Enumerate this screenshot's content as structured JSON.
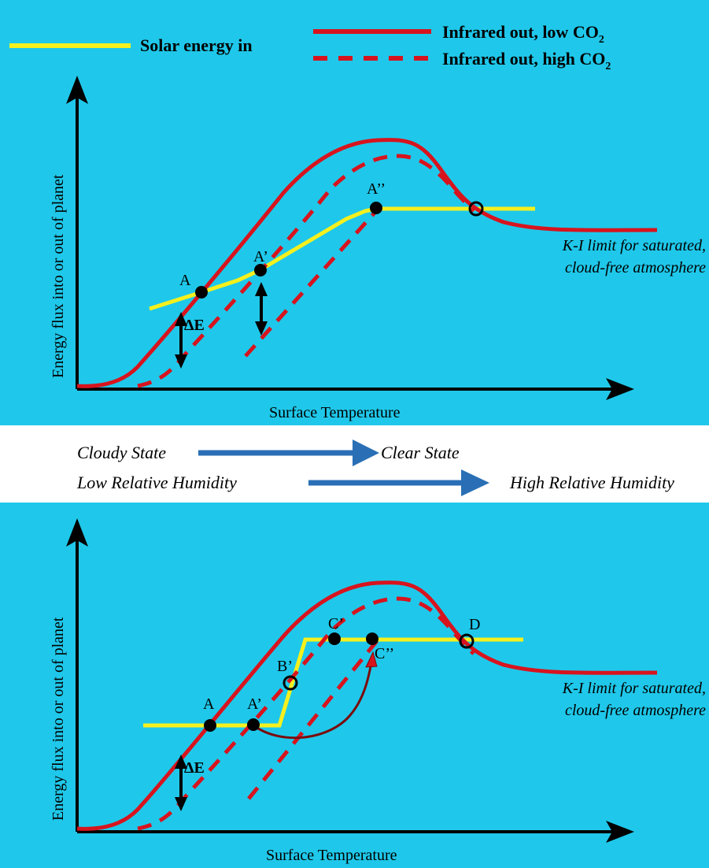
{
  "legend": {
    "solar": "Solar energy in",
    "ir_low_prefix": "Infrared out, low  CO",
    "ir_low_sub": "2",
    "ir_high_prefix": "Infrared out, high CO",
    "ir_high_sub": "2"
  },
  "top": {
    "ylabel": "Energy flux into or out of planet",
    "xlabel": "Surface Temperature",
    "points": {
      "A": "A",
      "A1": "A’",
      "A2": "A’’"
    },
    "delta": "ΔE",
    "ki_line1": "K-I limit for saturated,",
    "ki_line2": "cloud-free atmosphere"
  },
  "middle": {
    "cloudy": "Cloudy State",
    "clear": "Clear State",
    "low_rh": "Low Relative Humidity",
    "high_rh": "High Relative Humidity"
  },
  "bottom": {
    "ylabel": "Energy flux into or out of planet",
    "xlabel": "Surface Temperature",
    "points": {
      "A": "A",
      "A1": "A’",
      "B1": "B’",
      "C1": "C’",
      "C2": "C’’",
      "D": "D"
    },
    "delta": "ΔE",
    "ki_line1": "K-I limit for saturated,",
    "ki_line2": "cloud-free atmosphere"
  },
  "colors": {
    "background": "#1fc8ea",
    "solar": "#f5f01e",
    "infrared": "#d7141e",
    "arrow_blue": "#2a6fb5",
    "axis": "#000000"
  }
}
